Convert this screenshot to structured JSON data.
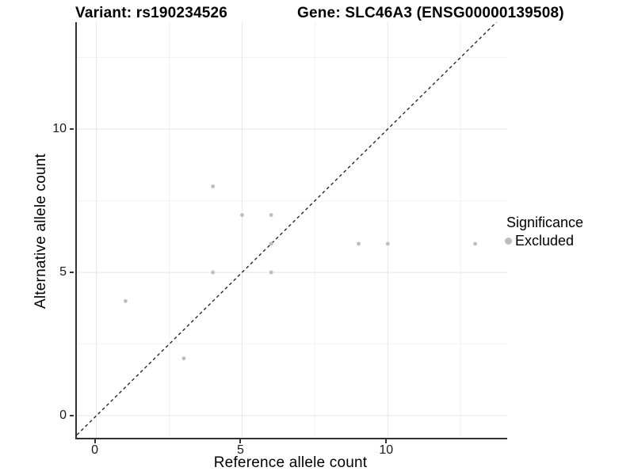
{
  "chart_data": {
    "type": "scatter",
    "title_left": "Variant: rs190234526",
    "title_right": "Gene: SLC46A3 (ENSG00000139508)",
    "xlabel": "Reference allele count",
    "ylabel": "Alternative allele count",
    "xlim": [
      -0.67,
      14.1
    ],
    "ylim": [
      -0.77,
      13.73
    ],
    "x_major_ticks": [
      0,
      5,
      10
    ],
    "y_major_ticks": [
      0,
      5,
      10
    ],
    "x_tick_labels": [
      "0",
      "5",
      "10"
    ],
    "y_tick_labels": [
      "0",
      "5",
      "10"
    ],
    "x_minor_gridlines": [
      2.5,
      7.5,
      12.5
    ],
    "y_minor_gridlines": [
      2.5,
      7.5,
      12.5
    ],
    "grid": true,
    "points": [
      {
        "x": 1,
        "y": 4
      },
      {
        "x": 3,
        "y": 2
      },
      {
        "x": 4,
        "y": 5
      },
      {
        "x": 4,
        "y": 8
      },
      {
        "x": 5,
        "y": 7
      },
      {
        "x": 6,
        "y": 5
      },
      {
        "x": 6,
        "y": 6
      },
      {
        "x": 6,
        "y": 7
      },
      {
        "x": 9,
        "y": 6
      },
      {
        "x": 10,
        "y": 6
      },
      {
        "x": 13,
        "y": 6
      }
    ],
    "identity_line": {
      "slope": 1,
      "intercept": 0,
      "style": "dashed",
      "color": "#1a1a1a"
    },
    "point_color": "#bdbdbd",
    "colors": {
      "major_grid": "#e5e5e5",
      "minor_grid": "#f2f2f2",
      "axis_line": "#333333",
      "point": "#bdbdbd"
    },
    "legend": {
      "position": "right",
      "title": "Significance",
      "items": [
        {
          "label": "Excluded",
          "color": "#bdbdbd"
        }
      ]
    }
  }
}
